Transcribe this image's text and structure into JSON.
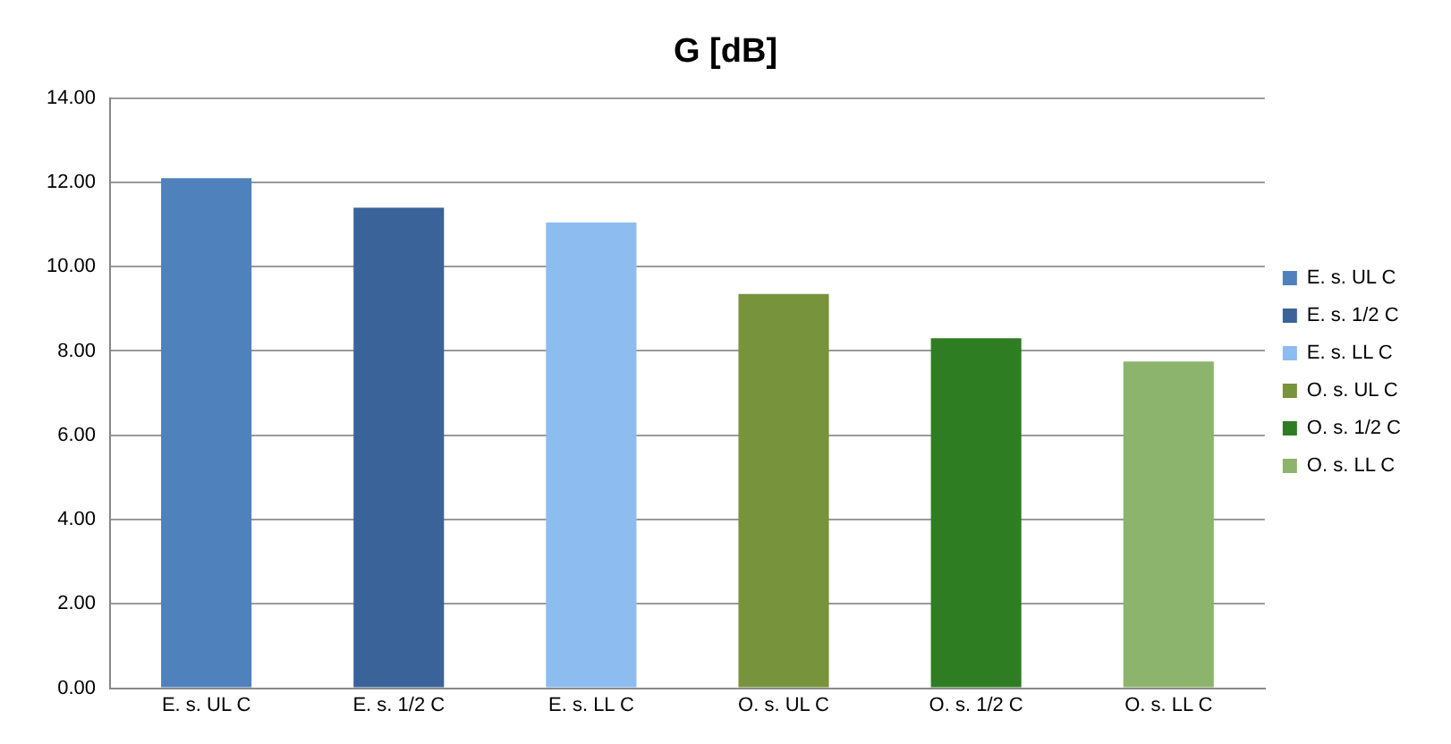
{
  "chart_data": {
    "type": "bar",
    "title": "G [dB]",
    "categories": [
      "E. s. UL C",
      "E. s. 1/2 C",
      "E. s. LL C",
      "O. s. UL C",
      "O. s. 1/2 C",
      "O. s. LL C"
    ],
    "series": [
      {
        "name": "E. s. UL C",
        "color": "#4f81bd",
        "values": [
          12.1,
          null,
          null,
          null,
          null,
          null
        ]
      },
      {
        "name": "E. s. 1/2 C",
        "color": "#3a6399",
        "values": [
          null,
          11.4,
          null,
          null,
          null,
          null
        ]
      },
      {
        "name": "E. s. LL C",
        "color": "#8cbcf0",
        "values": [
          null,
          null,
          11.05,
          null,
          null,
          null
        ]
      },
      {
        "name": "O. s. UL C",
        "color": "#77933c",
        "values": [
          null,
          null,
          null,
          9.35,
          null,
          null
        ]
      },
      {
        "name": "O. s. 1/2 C",
        "color": "#2e7d22",
        "values": [
          null,
          null,
          null,
          null,
          8.3,
          null
        ]
      },
      {
        "name": "O. s. LL C",
        "color": "#8db46c",
        "values": [
          null,
          null,
          null,
          null,
          null,
          7.75
        ]
      }
    ],
    "ylim": [
      0,
      14
    ],
    "yticks": [
      {
        "value": 0,
        "label": "0.00"
      },
      {
        "value": 2,
        "label": "2.00"
      },
      {
        "value": 4,
        "label": "4.00"
      },
      {
        "value": 6,
        "label": "6.00"
      },
      {
        "value": 8,
        "label": "8.00"
      },
      {
        "value": 10,
        "label": "10.00"
      },
      {
        "value": 12,
        "label": "12.00"
      },
      {
        "value": 14,
        "label": "14.00"
      }
    ],
    "grid": "y",
    "legend": "right"
  }
}
